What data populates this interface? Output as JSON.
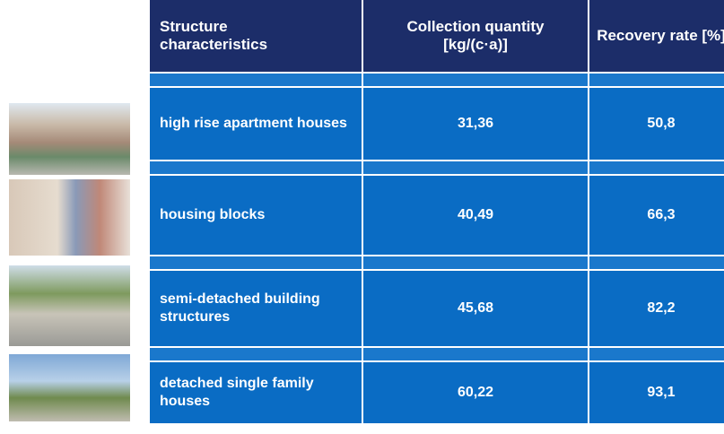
{
  "table": {
    "header": [
      "Structure characteristics",
      "Collection quantity [kg/(c·a)]",
      "Recovery rate [%]"
    ],
    "rows": [
      [
        "high rise apartment houses",
        "31,36",
        "50,8"
      ],
      [
        "housing blocks",
        "40,49",
        "66,3"
      ],
      [
        "semi-detached building structures",
        "45,68",
        "82,2"
      ],
      [
        "detached single family houses",
        "60,22",
        "93,1"
      ]
    ]
  }
}
